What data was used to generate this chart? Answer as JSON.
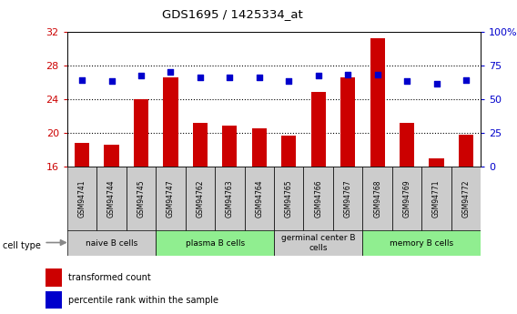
{
  "title": "GDS1695 / 1425334_at",
  "samples": [
    "GSM94741",
    "GSM94744",
    "GSM94745",
    "GSM94747",
    "GSM94762",
    "GSM94763",
    "GSM94764",
    "GSM94765",
    "GSM94766",
    "GSM94767",
    "GSM94768",
    "GSM94769",
    "GSM94771",
    "GSM94772"
  ],
  "transformed_count": [
    18.8,
    18.6,
    24.0,
    26.5,
    21.2,
    20.8,
    20.5,
    19.6,
    24.8,
    26.6,
    31.2,
    21.2,
    17.0,
    19.8
  ],
  "percentile_rank": [
    64,
    63,
    67,
    70,
    66,
    66,
    66,
    63,
    67,
    68,
    68,
    63,
    61,
    64
  ],
  "ylim_left": [
    16,
    32
  ],
  "ylim_right": [
    0,
    100
  ],
  "yticks_left": [
    16,
    20,
    24,
    28,
    32
  ],
  "yticks_right": [
    0,
    25,
    50,
    75,
    100
  ],
  "cell_groups": [
    {
      "label": "naive B cells",
      "start": 0,
      "end": 3,
      "color": "#cccccc"
    },
    {
      "label": "plasma B cells",
      "start": 3,
      "end": 7,
      "color": "#90EE90"
    },
    {
      "label": "germinal center B\ncells",
      "start": 7,
      "end": 10,
      "color": "#cccccc"
    },
    {
      "label": "memory B cells",
      "start": 10,
      "end": 14,
      "color": "#90EE90"
    }
  ],
  "bar_color": "#cc0000",
  "dot_color": "#0000cc",
  "left_tick_color": "#cc0000",
  "right_tick_color": "#0000cc",
  "label_bg_color": "#cccccc"
}
